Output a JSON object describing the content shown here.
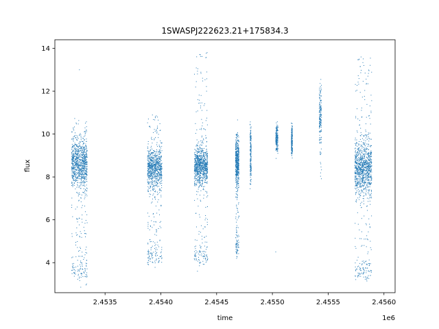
{
  "chart_data": {
    "type": "scatter",
    "title": "1SWASPJ222623.21+175834.3",
    "xlabel": "time",
    "ylabel": "flux",
    "x_offset_label": "1e6",
    "xlim": [
      2453050,
      2456100
    ],
    "ylim": [
      2.6,
      14.4
    ],
    "x_ticks": [
      2453500,
      2454000,
      2454500,
      2455000,
      2455500,
      2456000
    ],
    "x_tick_labels": [
      "2.4535",
      "2.4540",
      "2.4545",
      "2.4550",
      "2.4555",
      "2.4560"
    ],
    "y_ticks": [
      4,
      6,
      8,
      10,
      12,
      14
    ],
    "y_tick_labels": [
      "4",
      "6",
      "8",
      "10",
      "12",
      "14"
    ],
    "grid": false,
    "legend": "none",
    "series": [
      {
        "color": "#1f77b4",
        "marker": "point",
        "clusters": [
          {
            "x_range": [
              2453200,
              2453340
            ],
            "main_center": 8.6,
            "main_spread": 0.55,
            "main_density": 0.9,
            "low_range": [
              3.3,
              10.8
            ],
            "outliers": [
              [
                2453270,
                13.0
              ]
            ]
          },
          {
            "x_range": [
              2453880,
              2454010
            ],
            "main_center": 8.4,
            "main_spread": 0.5,
            "main_density": 0.8,
            "low_range": [
              3.9,
              10.9
            ],
            "outliers": []
          },
          {
            "x_range": [
              2454300,
              2454420
            ],
            "main_center": 8.5,
            "main_spread": 0.45,
            "main_density": 0.85,
            "low_range": [
              3.9,
              13.8
            ],
            "outliers": [
              [
                2454415,
                13.8
              ],
              [
                2454410,
                12.0
              ]
            ]
          },
          {
            "x_range": [
              2454670,
              2454700
            ],
            "main_center": 8.7,
            "main_spread": 0.55,
            "main_density": 0.5,
            "low_range": [
              4.3,
              10.1
            ],
            "outliers": []
          },
          {
            "x_range": [
              2454800,
              2454810
            ],
            "main_center": 9.0,
            "main_spread": 0.6,
            "main_density": 0.15,
            "low_range": [
              7.5,
              10.6
            ],
            "outliers": []
          },
          {
            "x_range": [
              2455030,
              2455050
            ],
            "main_center": 9.8,
            "main_spread": 0.3,
            "main_density": 0.15,
            "low_range": [
              9.2,
              10.4
            ],
            "outliers": [
              [
                2455030,
                4.5
              ]
            ]
          },
          {
            "x_range": [
              2455170,
              2455180
            ],
            "main_center": 9.7,
            "main_spread": 0.3,
            "main_density": 0.15,
            "low_range": [
              9.0,
              10.4
            ],
            "outliers": []
          },
          {
            "x_range": [
              2455420,
              2455440
            ],
            "main_center": 11.0,
            "main_spread": 0.6,
            "main_density": 0.15,
            "low_range": [
              7.8,
              12.5
            ],
            "outliers": []
          },
          {
            "x_range": [
              2455740,
              2455890
            ],
            "main_center": 8.4,
            "main_spread": 0.6,
            "main_density": 1.0,
            "low_range": [
              3.2,
              13.6
            ],
            "outliers": [
              [
                2455820,
                13.2
              ]
            ]
          }
        ]
      }
    ]
  }
}
